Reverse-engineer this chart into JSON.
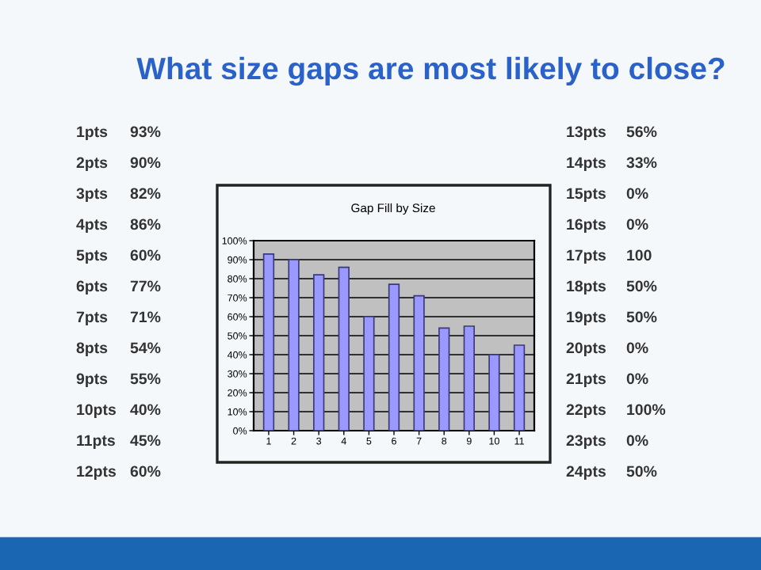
{
  "chart_data": {
    "type": "bar",
    "title": "What size gaps are most likely to close?",
    "subtitle": "Gap Fill by Size",
    "categories": [
      "1",
      "2",
      "3",
      "4",
      "5",
      "6",
      "7",
      "8",
      "9",
      "10",
      "11"
    ],
    "values": [
      93,
      90,
      82,
      86,
      60,
      77,
      71,
      54,
      55,
      40,
      45
    ],
    "color": "#9999ff",
    "ylim": [
      0,
      100
    ],
    "yticks": [
      {
        "value": 0,
        "label": "0%"
      },
      {
        "value": 10,
        "label": "10%"
      },
      {
        "value": 20,
        "label": "20%"
      },
      {
        "value": 30,
        "label": "30%"
      },
      {
        "value": 40,
        "label": "40%"
      },
      {
        "value": 50,
        "label": "50%"
      },
      {
        "value": 60,
        "label": "60%"
      },
      {
        "value": 70,
        "label": "70%"
      },
      {
        "value": 80,
        "label": "80%"
      },
      {
        "value": 90,
        "label": "90%"
      },
      {
        "value": 100,
        "label": "100%"
      }
    ],
    "grid": "y",
    "legend": false,
    "annotations": [
      "1pts 93%",
      "2pts 90%",
      "3pts 82%",
      "4pts 86%",
      "5pts 60%",
      "6pts 77%",
      "7pts 71%",
      "8pts 54%",
      "9pts 55%",
      "10pts 40%",
      "11pts 45%",
      "12pts 60%",
      "13pts 56%",
      "14pts 33%",
      "15pts 0%",
      "16pts 0%",
      "17pts 100",
      "18pts 50%",
      "19pts 50%",
      "20pts 0%",
      "21pts 0%",
      "22pts 100%",
      "23pts 0%",
      "24pts 50%"
    ]
  }
}
